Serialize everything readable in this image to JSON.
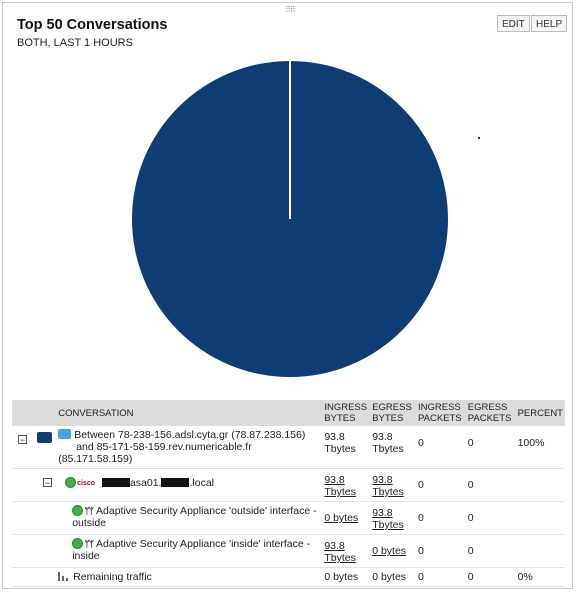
{
  "panel": {
    "title": "Top 50 Conversations",
    "subtitle": "BOTH, LAST 1 HOURS",
    "edit_label": "EDIT",
    "help_label": "HELP",
    "grip_glyph": "⠿⠿"
  },
  "chart_data": {
    "type": "pie",
    "slices": [
      {
        "label": "Between 78-238-156.adsl.cyta.gr (78.87.238.156) and 85-171-58-159.rev.numericable.fr (85.171.58.159)",
        "percent": 100,
        "color": "#0e3d73"
      }
    ],
    "slice_border_color": "#ffffff"
  },
  "table": {
    "headers": {
      "conversation": "CONVERSATION",
      "ingress_bytes": "INGRESS BYTES",
      "egress_bytes": "EGRESS BYTES",
      "ingress_packets": "INGRESS PACKETS",
      "egress_packets": "EGRESS PACKETS",
      "percent": "PERCENT"
    },
    "rows": [
      {
        "toggle": "−",
        "name_line1": "Between 78-238-156.adsl.cyta.gr (78.87.238.156)",
        "name_line2": "and 85-171-58-159.rev.numericable.fr",
        "name_line3": "(85.171.58.159)",
        "ingress_bytes": "93.8 Tbytes",
        "egress_bytes": "93.8 Tbytes",
        "ingress_packets": "0",
        "egress_packets": "0",
        "percent": "100%"
      },
      {
        "toggle": "−",
        "device_name_mid": "asa01.",
        "device_name_end": ".local",
        "device_brand": "cisco",
        "ingress_bytes": "93.8 Tbytes",
        "egress_bytes": "93.8 Tbytes",
        "ingress_packets": "0",
        "egress_packets": "0"
      },
      {
        "iface_glyph": "ᛘᛘ",
        "name": "Adaptive Security Appliance 'outside' interface - outside",
        "ingress_bytes": "0 bytes",
        "egress_bytes": "93.8 Tbytes",
        "ingress_packets": "0",
        "egress_packets": "0"
      },
      {
        "iface_glyph": "ᛘᛘ",
        "name": "Adaptive Security Appliance 'inside' interface - inside",
        "ingress_bytes": "93.8 Tbytes",
        "egress_bytes": "0 bytes",
        "ingress_packets": "0",
        "egress_packets": "0"
      },
      {
        "name": "Remaining traffic",
        "ingress_bytes": "0 bytes",
        "egress_bytes": "0 bytes",
        "ingress_packets": "0",
        "egress_packets": "0",
        "percent": "0%"
      }
    ]
  }
}
